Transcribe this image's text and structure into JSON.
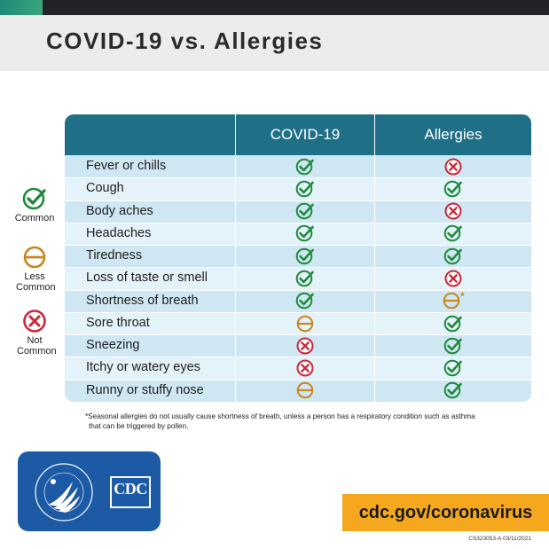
{
  "title": "COVID-19 vs. Allergies",
  "legend": [
    {
      "icon": "check-icon",
      "label": "Common"
    },
    {
      "icon": "dash-icon",
      "label": "Less Common"
    },
    {
      "icon": "x-icon",
      "label": "Not Common"
    }
  ],
  "table": {
    "columns": [
      "COVID-19",
      "Allergies"
    ],
    "rows": [
      {
        "symptom": "Fever or chills",
        "covid": "check",
        "allergies": "x"
      },
      {
        "symptom": "Cough",
        "covid": "check",
        "allergies": "check"
      },
      {
        "symptom": "Body aches",
        "covid": "check",
        "allergies": "x"
      },
      {
        "symptom": "Headaches",
        "covid": "check",
        "allergies": "check"
      },
      {
        "symptom": "Tiredness",
        "covid": "check",
        "allergies": "check"
      },
      {
        "symptom": "Loss of taste or smell",
        "covid": "check",
        "allergies": "x"
      },
      {
        "symptom": "Shortness of breath",
        "covid": "check",
        "allergies": "dash*"
      },
      {
        "symptom": "Sore throat",
        "covid": "dash",
        "allergies": "check"
      },
      {
        "symptom": "Sneezing",
        "covid": "x",
        "allergies": "check"
      },
      {
        "symptom": "Itchy or watery eyes",
        "covid": "x",
        "allergies": "check"
      },
      {
        "symptom": "Runny or stuffy nose",
        "covid": "dash",
        "allergies": "check"
      }
    ]
  },
  "footnote_line1": "*Seasonal allergies do not usually cause shortness of breath, unless a person has a respiratory condition such as asthma",
  "footnote_line2": "that can be triggered by pollen.",
  "logo_text": "CDC",
  "url": "cdc.gov/coronavirus",
  "code": "CS323053-A 03/11/2021",
  "colors": {
    "header_blue": "#1f6f86",
    "row_dark": "#cfe7f3",
    "row_light": "#e4f2f9",
    "check_green": "#1e8a3c",
    "dash_orange": "#c8861e",
    "x_red": "#c8283a",
    "logo_blue": "#1d5aa5",
    "url_orange": "#f5a81e"
  }
}
